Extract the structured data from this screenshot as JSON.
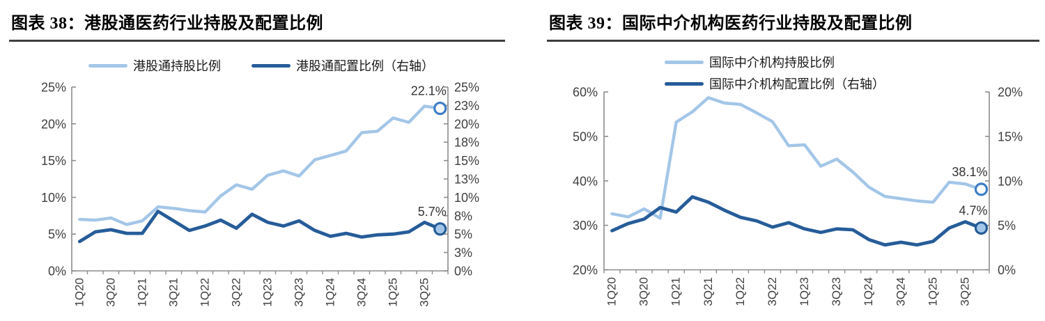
{
  "chart_data": [
    {
      "type": "line",
      "title": "图表 38：港股通医药行业持股及配置比例",
      "categories": [
        "1Q20",
        "2Q20",
        "3Q20",
        "4Q20",
        "1Q21",
        "2Q21",
        "3Q21",
        "4Q21",
        "1Q22",
        "2Q22",
        "3Q22",
        "4Q22",
        "1Q23",
        "2Q23",
        "3Q23",
        "4Q23",
        "1Q24",
        "2Q24",
        "3Q24",
        "4Q24",
        "1Q25",
        "2Q25",
        "3Q25",
        "4Q25"
      ],
      "x_tick_labels": [
        "1Q20",
        "3Q20",
        "1Q21",
        "3Q21",
        "1Q22",
        "3Q22",
        "1Q23",
        "3Q23",
        "1Q24",
        "3Q24",
        "1Q25",
        "3Q25"
      ],
      "axes": {
        "left": {
          "min": 0,
          "max": 25,
          "tick_labels": [
            "25%",
            "20%",
            "15%",
            "10%",
            "5%",
            "0%"
          ]
        },
        "right": {
          "min": 0,
          "max": 25,
          "tick_labels": [
            "25%",
            "23%",
            "20%",
            "18%",
            "15%",
            "13%",
            "10%",
            "8%",
            "5%",
            "3%",
            "0%"
          ]
        }
      },
      "series": [
        {
          "name": "港股通持股比例",
          "axis": "left",
          "color": "#A3C6E8",
          "values": [
            7.0,
            6.9,
            7.2,
            6.3,
            6.8,
            8.7,
            8.5,
            8.2,
            8.0,
            10.2,
            11.7,
            11.1,
            13.0,
            13.6,
            12.9,
            15.1,
            15.7,
            16.3,
            18.8,
            19.0,
            20.8,
            20.2,
            22.4,
            22.1
          ],
          "end_label": "22.1%",
          "marker_fill": "#FFFFFF",
          "marker_stroke": "#3E7DC8"
        },
        {
          "name": "港股通配置比例（右轴）",
          "axis": "right",
          "color": "#265C99",
          "values": [
            4.0,
            5.3,
            5.6,
            5.1,
            5.1,
            8.1,
            6.8,
            5.5,
            6.1,
            6.9,
            5.8,
            7.7,
            6.6,
            6.1,
            6.8,
            5.5,
            4.7,
            5.1,
            4.6,
            4.9,
            5.0,
            5.3,
            6.6,
            5.7
          ],
          "end_label": "5.7%",
          "marker_fill": "#A3C6E8",
          "marker_stroke": "#265C99"
        }
      ],
      "legend_layout": "row",
      "grid": false,
      "legend_position": "top"
    },
    {
      "type": "line",
      "title": "图表 39：国际中介机构医药行业持股及配置比例",
      "categories": [
        "1Q20",
        "2Q20",
        "3Q20",
        "4Q20",
        "1Q21",
        "2Q21",
        "3Q21",
        "4Q21",
        "1Q22",
        "2Q22",
        "3Q22",
        "4Q22",
        "1Q23",
        "2Q23",
        "3Q23",
        "4Q23",
        "1Q24",
        "2Q24",
        "3Q24",
        "4Q24",
        "1Q25",
        "2Q25",
        "3Q25",
        "4Q25"
      ],
      "x_tick_labels": [
        "1Q20",
        "3Q20",
        "1Q21",
        "3Q21",
        "1Q22",
        "3Q22",
        "1Q23",
        "3Q23",
        "1Q24",
        "3Q24",
        "1Q25",
        "3Q25"
      ],
      "axes": {
        "left": {
          "min": 20,
          "max": 60,
          "tick_labels": [
            "60%",
            "50%",
            "40%",
            "30%",
            "20%"
          ]
        },
        "right": {
          "min": 0,
          "max": 20,
          "tick_labels": [
            "20%",
            "15%",
            "10%",
            "5%",
            "0%"
          ]
        }
      },
      "series": [
        {
          "name": "国际中介机构持股比例",
          "axis": "left",
          "color": "#A3C6E8",
          "values": [
            32.6,
            31.9,
            33.7,
            31.6,
            53.2,
            55.5,
            58.7,
            57.5,
            57.2,
            55.3,
            53.3,
            47.9,
            48.1,
            43.3,
            44.9,
            42.0,
            38.6,
            36.5,
            36.0,
            35.5,
            35.2,
            39.7,
            39.3,
            38.1
          ],
          "end_label": "38.1%",
          "marker_fill": "#FFFFFF",
          "marker_stroke": "#3E7DC8"
        },
        {
          "name": "国际中介机构配置比例（右轴）",
          "axis": "right",
          "color": "#265C99",
          "values": [
            4.4,
            5.2,
            5.7,
            7.0,
            6.5,
            8.2,
            7.6,
            6.7,
            5.9,
            5.5,
            4.8,
            5.3,
            4.6,
            4.2,
            4.6,
            4.5,
            3.4,
            2.8,
            3.1,
            2.8,
            3.2,
            4.7,
            5.4,
            4.7
          ],
          "end_label": "4.7%",
          "marker_fill": "#A3C6E8",
          "marker_stroke": "#265C99"
        }
      ],
      "legend_layout": "column",
      "grid": false,
      "legend_position": "top"
    }
  ],
  "style": {
    "axis_line_color": "#8C8C8C",
    "tick_label_color": "#3F3F3F",
    "annotation_color": "#333333",
    "title_rule_color": "#3F3F3F"
  }
}
